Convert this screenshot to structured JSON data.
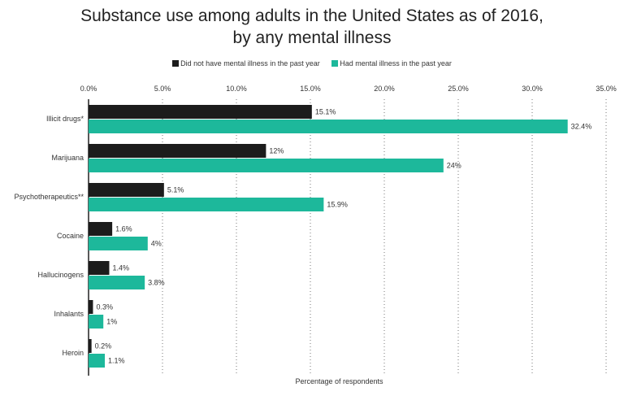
{
  "chart_data": {
    "type": "bar",
    "orientation": "horizontal",
    "title": "Substance use among adults in the United States as of 2016, by any mental illness",
    "title_lines": [
      "Substance use among adults in the United States as of 2016,",
      "by any mental illness"
    ],
    "xlabel": "Percentage of respondents",
    "ylabel": "",
    "xlim": [
      0,
      35
    ],
    "xticks": [
      "0.0%",
      "5.0%",
      "10.0%",
      "15.0%",
      "20.0%",
      "25.0%",
      "30.0%",
      "35.0%"
    ],
    "grid": "vertical dotted",
    "legend_position": "top",
    "categories": [
      "Illicit drugs*",
      "Marijuana",
      "Psychotherapeutics**",
      "Cocaine",
      "Hallucinogens",
      "Inhalants",
      "Heroin"
    ],
    "series": [
      {
        "name": "Did not have mental illness in the past year",
        "color": "#1c1c1c",
        "values": [
          15.1,
          12,
          5.1,
          1.6,
          1.4,
          0.3,
          0.2
        ],
        "labels": [
          "15.1%",
          "12%",
          "5.1%",
          "1.6%",
          "1.4%",
          "0.3%",
          "0.2%"
        ]
      },
      {
        "name": "Had mental illness in the past year",
        "color": "#1db89b",
        "values": [
          32.4,
          24,
          15.9,
          4,
          3.8,
          1,
          1.1
        ],
        "labels": [
          "32.4%",
          "24%",
          "15.9%",
          "4%",
          "3.8%",
          "1%",
          "1.1%"
        ]
      }
    ]
  }
}
